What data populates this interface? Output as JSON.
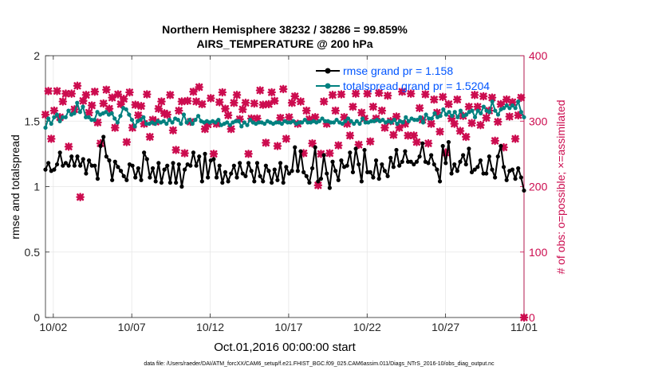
{
  "chart_data": {
    "type": "line",
    "title": "Northern Hemisphere 38232 / 38286 = 99.859%",
    "subtitle": "AIRS_TEMPERATURE @ 200 hPa",
    "xlabel": "Oct.01,2016 00:00:00 start",
    "ylabel_left": "rmse and totalspread",
    "ylabel_right": "# of obs: o=possible; ×=assimilated",
    "footer": "data file: /Users/raeder/DAI/ATM_forcXX/CAM6_setup/f.e21.FHIST_BGC.f09_025.CAM6assim.011/Diags_NTrS_2016-10/obs_diag_output.nc",
    "x_tick_labels": [
      "10/02",
      "10/07",
      "10/12",
      "10/17",
      "10/22",
      "10/27",
      "11/01"
    ],
    "x_tick_days": [
      1,
      6,
      11,
      16,
      21,
      26,
      31
    ],
    "xlim_days": [
      0.5,
      31
    ],
    "ylim_left": [
      0,
      2
    ],
    "y_ticks_left": [
      "0",
      "0.5",
      "1",
      "1.5",
      "2"
    ],
    "ylim_right": [
      0,
      400
    ],
    "y_ticks_right": [
      "0",
      "100",
      "200",
      "300",
      "400"
    ],
    "grid": true,
    "legend_position": "top-right",
    "colors": {
      "rmse": "#000000",
      "totalspread": "#00807f",
      "obs": "#cc0c4f",
      "legend_text": "#0055ff"
    },
    "series": [
      {
        "name": "rmse grand pr = 1.158",
        "axis": "left",
        "marker": "dot",
        "values": [
          1.13,
          1.18,
          1.12,
          1.13,
          1.17,
          1.26,
          1.16,
          1.18,
          1.16,
          1.23,
          1.16,
          1.23,
          1.16,
          1.21,
          1.1,
          1.2,
          1.16,
          1.16,
          1.06,
          1.31,
          1.38,
          1.23,
          1.2,
          1.05,
          1.19,
          1.15,
          1.12,
          1.08,
          1.05,
          1.17,
          1.16,
          1.07,
          1.14,
          1.05,
          1.26,
          1.21,
          1.07,
          1.14,
          1.04,
          1.18,
          1.03,
          1.13,
          1.16,
          1.03,
          1.18,
          1.03,
          1.17,
          1.0,
          1.13,
          1.17,
          1.16,
          1.26,
          1.16,
          1.23,
          1.04,
          1.25,
          1.07,
          1.2,
          1.21,
          1.07,
          1.16,
          1.03,
          1.11,
          1.04,
          1.1,
          1.16,
          1.07,
          1.18,
          1.1,
          1.08,
          1.18,
          1.12,
          1.04,
          1.18,
          1.08,
          1.04,
          1.16,
          1.12,
          1.03,
          1.13,
          1.05,
          1.18,
          1.03,
          1.15,
          1.1,
          1.12,
          1.3,
          1.12,
          1.27,
          1.11,
          1.08,
          1.03,
          1.14,
          1.3,
          1.04,
          1.06,
          1.24,
          1.1,
          0.99,
          1.19,
          1.12,
          1.05,
          1.2,
          1.15,
          1.16,
          1.26,
          1.11,
          1.29,
          1.17,
          1.04,
          1.28,
          1.11,
          1.11,
          1.07,
          1.2,
          1.06,
          1.17,
          1.12,
          1.08,
          1.22,
          1.15,
          1.28,
          1.16,
          1.19,
          1.27,
          1.19,
          1.19,
          1.17,
          1.19,
          1.23,
          1.33,
          1.19,
          1.18,
          1.24,
          1.17,
          1.13,
          1.04,
          1.31,
          1.18,
          1.34,
          1.1,
          1.17,
          1.12,
          1.19,
          1.24,
          1.17,
          1.29,
          1.11,
          1.13,
          1.15,
          1.2,
          1.1,
          1.1,
          1.23,
          1.13,
          1.07,
          1.23,
          1.31,
          1.15,
          1.05,
          1.12,
          1.13,
          1.06,
          1.14,
          1.07,
          0.97
        ]
      },
      {
        "name": "totalspread grand pr = 1.5204",
        "axis": "left",
        "marker": "dot",
        "values": [
          1.45,
          1.52,
          1.48,
          1.53,
          1.55,
          1.5,
          1.53,
          1.53,
          1.58,
          1.55,
          1.56,
          1.64,
          1.57,
          1.61,
          1.53,
          1.53,
          1.51,
          1.51,
          1.57,
          1.55,
          1.56,
          1.57,
          1.55,
          1.56,
          1.52,
          1.49,
          1.54,
          1.6,
          1.59,
          1.55,
          1.51,
          1.46,
          1.5,
          1.51,
          1.53,
          1.48,
          1.48,
          1.49,
          1.48,
          1.5,
          1.49,
          1.5,
          1.48,
          1.51,
          1.49,
          1.52,
          1.51,
          1.48,
          1.55,
          1.49,
          1.51,
          1.48,
          1.51,
          1.54,
          1.5,
          1.49,
          1.5,
          1.49,
          1.5,
          1.49,
          1.51,
          1.47,
          1.48,
          1.49,
          1.47,
          1.49,
          1.5,
          1.5,
          1.46,
          1.49,
          1.47,
          1.51,
          1.49,
          1.48,
          1.49,
          1.49,
          1.48,
          1.5,
          1.49,
          1.48,
          1.49,
          1.49,
          1.48,
          1.5,
          1.49,
          1.49,
          1.5,
          1.48,
          1.49,
          1.49,
          1.51,
          1.49,
          1.49,
          1.5,
          1.49,
          1.5,
          1.52,
          1.5,
          1.5,
          1.49,
          1.49,
          1.51,
          1.49,
          1.48,
          1.5,
          1.52,
          1.5,
          1.48,
          1.5,
          1.48,
          1.52,
          1.49,
          1.49,
          1.5,
          1.5,
          1.51,
          1.5,
          1.51,
          1.49,
          1.5,
          1.49,
          1.51,
          1.48,
          1.5,
          1.49,
          1.53,
          1.5,
          1.52,
          1.51,
          1.51,
          1.53,
          1.49,
          1.55,
          1.52,
          1.52,
          1.56,
          1.53,
          1.54,
          1.59,
          1.55,
          1.57,
          1.54,
          1.57,
          1.53,
          1.58,
          1.54,
          1.55,
          1.57,
          1.58,
          1.53,
          1.58,
          1.56,
          1.61,
          1.58,
          1.57,
          1.65,
          1.58,
          1.55,
          1.59,
          1.6,
          1.62,
          1.6,
          1.62,
          1.6,
          1.65,
          1.57,
          1.53
        ]
      },
      {
        "name": "obs assimilated",
        "axis": "right",
        "marker": "x",
        "values": [
          310,
          346,
          273,
          316,
          346,
          306,
          330,
          342,
          261,
          342,
          318,
          354,
          184,
          331,
          340,
          313,
          324,
          345,
          298,
          266,
          327,
          348,
          319,
          336,
          290,
          341,
          326,
          334,
          268,
          344,
          290,
          325,
          309,
          323,
          296,
          341,
          276,
          302,
          299,
          319,
          330,
          312,
          310,
          340,
          286,
          256,
          316,
          330,
          251,
          331,
          299,
          345,
          330,
          352,
          326,
          288,
          295,
          335,
          250,
          296,
          329,
          344,
          319,
          309,
          288,
          328,
          340,
          303,
          318,
          328,
          250,
          304,
          327,
          304,
          347,
          325,
          267,
          326,
          344,
          331,
          262,
          305,
          349,
          273,
          306,
          328,
          338,
          296,
          330,
          251,
          316,
          303,
          266,
          306,
          202,
          250,
          330,
          296,
          251,
          340,
          316,
          263,
          341,
          306,
          296,
          278,
          322,
          342,
          264,
          313,
          304,
          342,
          269,
          322,
          304,
          343,
          316,
          290,
          339,
          300,
          279,
          307,
          290,
          345,
          296,
          278,
          342,
          278,
          268,
          320,
          302,
          341,
          266,
          296,
          333,
          313,
          284,
          337,
          252,
          326,
          304,
          296,
          333,
          285,
          308,
          276,
          322,
          297,
          340,
          322,
          294,
          338,
          305,
          316,
          336,
          270,
          299,
          326,
          260,
          333,
          307,
          329,
          273,
          309,
          336,
          0
        ]
      }
    ]
  }
}
